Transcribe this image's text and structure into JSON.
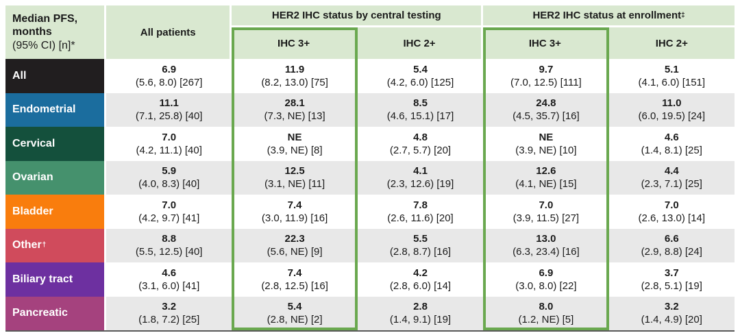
{
  "accent_colors": {
    "highlight_border": "#6aa84f",
    "header_bg": "#d9e8d0",
    "stripe_bg": "#e8e8e8",
    "bottom_rule": "#595959"
  },
  "chart_data": {
    "type": "table",
    "title": "Median PFS, months (95% CI) [n]*",
    "header": {
      "corner_line1": "Median PFS,",
      "corner_line2": "months",
      "corner_line3": "(95% CI) [n]*",
      "all_patients": "All patients",
      "group_central": "HER2 IHC status by central testing",
      "group_enrollment": "HER2 IHC status at enrollment",
      "group_enrollment_sup": "‡",
      "sub_central_ihc3": "IHC 3+",
      "sub_central_ihc2": "IHC 2+",
      "sub_enrollment_ihc3": "IHC 3+",
      "sub_enrollment_ihc2": "IHC 2+"
    },
    "column_order": [
      "All patients",
      "IHC 3+ (central testing)",
      "IHC 2+ (central testing)",
      "IHC 3+ (at enrollment)",
      "IHC 2+ (at enrollment)"
    ],
    "rows": [
      {
        "label": "All",
        "sup": "",
        "color": "#211e1f",
        "cells": [
          {
            "median": "6.9",
            "ci": "(5.6, 8.0) [267]"
          },
          {
            "median": "11.9",
            "ci": "(8.2, 13.0) [75]"
          },
          {
            "median": "5.4",
            "ci": "(4.2, 6.0) [125]"
          },
          {
            "median": "9.7",
            "ci": "(7.0, 12.5) [111]"
          },
          {
            "median": "5.1",
            "ci": "(4.1, 6.0) [151]"
          }
        ]
      },
      {
        "label": "Endometrial",
        "sup": "",
        "color": "#1b6d9e",
        "cells": [
          {
            "median": "11.1",
            "ci": "(7.1, 25.8) [40]"
          },
          {
            "median": "28.1",
            "ci": "(7.3, NE) [13]"
          },
          {
            "median": "8.5",
            "ci": "(4.6, 15.1) [17]"
          },
          {
            "median": "24.8",
            "ci": "(4.5, 35.7) [16]"
          },
          {
            "median": "11.0",
            "ci": "(6.0, 19.5) [24]"
          }
        ]
      },
      {
        "label": "Cervical",
        "sup": "",
        "color": "#14503c",
        "cells": [
          {
            "median": "7.0",
            "ci": "(4.2, 11.1) [40]"
          },
          {
            "median": "NE",
            "ci": "(3.9, NE) [8]"
          },
          {
            "median": "4.8",
            "ci": "(2.7, 5.7) [20]"
          },
          {
            "median": "NE",
            "ci": "(3.9, NE) [10]"
          },
          {
            "median": "4.6",
            "ci": "(1.4, 8.1) [25]"
          }
        ]
      },
      {
        "label": "Ovarian",
        "sup": "",
        "color": "#45916d",
        "cells": [
          {
            "median": "5.9",
            "ci": "(4.0, 8.3) [40]"
          },
          {
            "median": "12.5",
            "ci": "(3.1, NE) [11]"
          },
          {
            "median": "4.1",
            "ci": "(2.3, 12.6) [19]"
          },
          {
            "median": "12.6",
            "ci": "(4.1, NE) [15]"
          },
          {
            "median": "4.4",
            "ci": "(2.3, 7.1) [25]"
          }
        ]
      },
      {
        "label": "Bladder",
        "sup": "",
        "color": "#f97d0d",
        "cells": [
          {
            "median": "7.0",
            "ci": "(4.2, 9.7) [41]"
          },
          {
            "median": "7.4",
            "ci": "(3.0, 11.9) [16]"
          },
          {
            "median": "7.8",
            "ci": "(2.6, 11.6) [20]"
          },
          {
            "median": "7.0",
            "ci": "(3.9, 11.5) [27]"
          },
          {
            "median": "7.0",
            "ci": "(2.6, 13.0) [14]"
          }
        ]
      },
      {
        "label": "Other",
        "sup": "†",
        "color": "#d04b5c",
        "cells": [
          {
            "median": "8.8",
            "ci": "(5.5, 12.5) [40]"
          },
          {
            "median": "22.3",
            "ci": "(5.6, NE) [9]"
          },
          {
            "median": "5.5",
            "ci": "(2.8, 8.7) [16]"
          },
          {
            "median": "13.0",
            "ci": "(6.3, 23.4) [16]"
          },
          {
            "median": "6.6",
            "ci": "(2.9, 8.8) [24]"
          }
        ]
      },
      {
        "label": "Biliary tract",
        "sup": "",
        "color": "#6d30a0",
        "cells": [
          {
            "median": "4.6",
            "ci": "(3.1, 6.0) [41]"
          },
          {
            "median": "7.4",
            "ci": "(2.8, 12.5) [16]"
          },
          {
            "median": "4.2",
            "ci": "(2.8, 6.0) [14]"
          },
          {
            "median": "6.9",
            "ci": "(3.0, 8.0) [22]"
          },
          {
            "median": "3.7",
            "ci": "(2.8, 5.1) [19]"
          }
        ]
      },
      {
        "label": "Pancreatic",
        "sup": "",
        "color": "#a5427e",
        "cells": [
          {
            "median": "3.2",
            "ci": "(1.8, 7.2) [25]"
          },
          {
            "median": "5.4",
            "ci": "(2.8, NE) [2]"
          },
          {
            "median": "2.8",
            "ci": "(1.4, 9.1) [19]"
          },
          {
            "median": "8.0",
            "ci": "(1.2, NE) [5]"
          },
          {
            "median": "3.2",
            "ci": "(1.4, 4.9) [20]"
          }
        ]
      }
    ]
  }
}
